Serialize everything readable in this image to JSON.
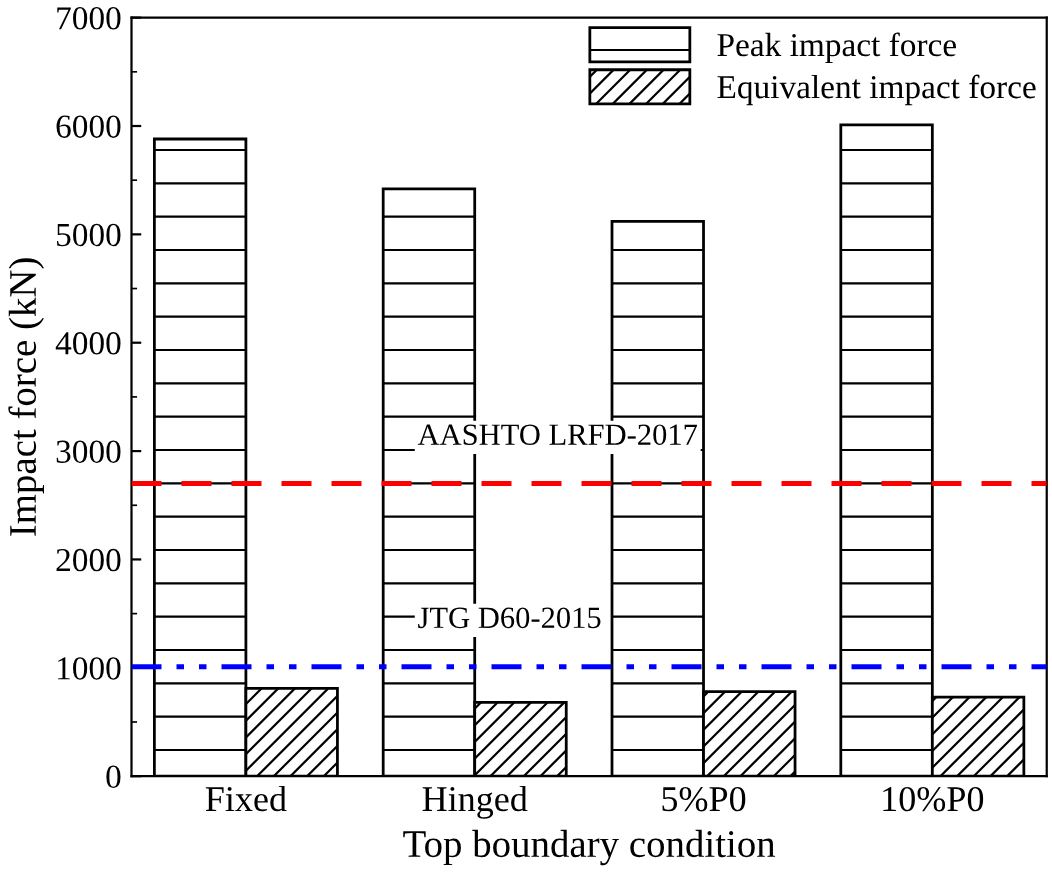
{
  "chart_data": {
    "type": "bar",
    "xlabel": "Top boundary condition",
    "ylabel": "Impact force (kN)",
    "categories": [
      "Fixed",
      "Hinged",
      "5%P0",
      "10%P0"
    ],
    "series": [
      {
        "name": "Peak impact force",
        "color": "#000000",
        "values": [
          5880,
          5420,
          5120,
          6010
        ]
      },
      {
        "name": "Equivalent impact force",
        "color": "#000000",
        "values": [
          810,
          680,
          780,
          730
        ]
      }
    ],
    "ylim": [
      0,
      7000
    ],
    "yticks": [
      0,
      1000,
      2000,
      3000,
      4000,
      5000,
      6000,
      7000
    ],
    "ref_lines": [
      {
        "axis": "y",
        "value": 2700,
        "label": "AASHTO LRFD-2017",
        "color": "#ff0000",
        "line_style": "dashed"
      },
      {
        "axis": "y",
        "value": 1010,
        "label": "JTG D60-2015",
        "color": "#0000ff",
        "line_style": "dashdot"
      }
    ],
    "grid": false,
    "legend": "top right"
  }
}
